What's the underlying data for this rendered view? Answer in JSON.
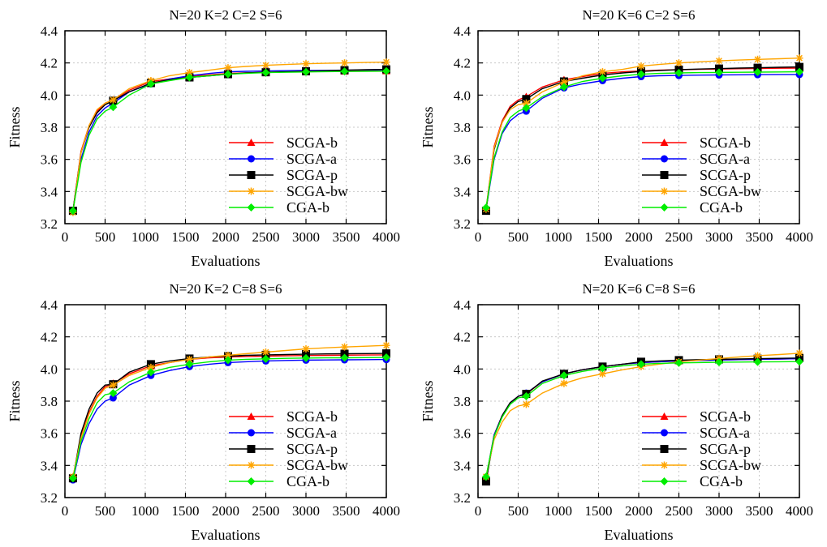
{
  "chart_data": [
    {
      "type": "line",
      "title": "N=20 K=2 C=2 S=6",
      "xlabel": "Evaluations",
      "ylabel": "Fitness",
      "xlim": [
        0,
        4000
      ],
      "ylim": [
        3.2,
        4.4
      ],
      "xticks": [
        0,
        500,
        1000,
        1500,
        2000,
        2500,
        3000,
        3500,
        4000
      ],
      "yticks": [
        "3.2",
        "3.4",
        "3.6",
        "3.8",
        "4.0",
        "4.2",
        "4.4"
      ],
      "grid": true,
      "legend_position": "bottom-right",
      "x": [
        100,
        200,
        300,
        400,
        500,
        600,
        800,
        1070,
        1300,
        1550,
        1800,
        2030,
        2250,
        2500,
        2750,
        3000,
        3250,
        3480,
        3750,
        4000
      ],
      "series": [
        {
          "name": "SCGA-b",
          "color": "#ff0000",
          "marker": "triangle",
          "values": [
            3.28,
            3.65,
            3.81,
            3.9,
            3.95,
            3.97,
            4.03,
            4.085,
            4.1,
            4.115,
            4.125,
            4.135,
            4.138,
            4.142,
            4.144,
            4.146,
            4.147,
            4.148,
            4.149,
            4.15
          ]
        },
        {
          "name": "SCGA-a",
          "color": "#0000ff",
          "marker": "circle",
          "values": [
            3.28,
            3.6,
            3.77,
            3.87,
            3.92,
            3.95,
            4.02,
            4.07,
            4.1,
            4.12,
            4.135,
            4.145,
            4.148,
            4.15,
            4.152,
            4.153,
            4.154,
            4.155,
            4.156,
            4.157
          ]
        },
        {
          "name": "SCGA-p",
          "color": "#000000",
          "marker": "square",
          "values": [
            3.28,
            3.64,
            3.8,
            3.89,
            3.94,
            3.965,
            4.02,
            4.075,
            4.095,
            4.11,
            4.12,
            4.13,
            4.138,
            4.142,
            4.145,
            4.148,
            4.152,
            4.155,
            4.158,
            4.16
          ]
        },
        {
          "name": "SCGA-bw",
          "color": "#ffa500",
          "marker": "star",
          "values": [
            3.27,
            3.64,
            3.81,
            3.91,
            3.95,
            3.97,
            4.04,
            4.09,
            4.12,
            4.14,
            4.155,
            4.17,
            4.178,
            4.185,
            4.19,
            4.195,
            4.198,
            4.2,
            4.203,
            4.205
          ]
        },
        {
          "name": "CGA-b",
          "color": "#00ee00",
          "marker": "diamond",
          "values": [
            3.28,
            3.58,
            3.75,
            3.85,
            3.9,
            3.925,
            4.0,
            4.07,
            4.09,
            4.11,
            4.12,
            4.13,
            4.135,
            4.14,
            4.142,
            4.144,
            4.146,
            4.147,
            4.148,
            4.149
          ]
        }
      ]
    },
    {
      "type": "line",
      "title": "N=20 K=6 C=2 S=6",
      "xlabel": "Evaluations",
      "ylabel": "Fitness",
      "xlim": [
        0,
        4000
      ],
      "ylim": [
        3.2,
        4.4
      ],
      "xticks": [
        0,
        500,
        1000,
        1500,
        2000,
        2500,
        3000,
        3500,
        4000
      ],
      "yticks": [
        "3.2",
        "3.4",
        "3.6",
        "3.8",
        "4.0",
        "4.2",
        "4.4"
      ],
      "grid": true,
      "legend_position": "bottom-right",
      "x": [
        100,
        200,
        300,
        400,
        500,
        600,
        800,
        1070,
        1300,
        1550,
        1800,
        2030,
        2250,
        2500,
        2750,
        3000,
        3250,
        3480,
        3750,
        4000
      ],
      "series": [
        {
          "name": "SCGA-b",
          "color": "#ff0000",
          "marker": "triangle",
          "values": [
            3.29,
            3.68,
            3.84,
            3.93,
            3.97,
            3.99,
            4.05,
            4.095,
            4.115,
            4.135,
            4.145,
            4.15,
            4.155,
            4.158,
            4.16,
            4.162,
            4.164,
            4.165,
            4.167,
            4.168
          ]
        },
        {
          "name": "SCGA-a",
          "color": "#0000ff",
          "marker": "circle",
          "values": [
            3.29,
            3.6,
            3.76,
            3.84,
            3.88,
            3.9,
            3.98,
            4.045,
            4.07,
            4.09,
            4.105,
            4.115,
            4.12,
            4.122,
            4.124,
            4.125,
            4.126,
            4.127,
            4.128,
            4.128
          ]
        },
        {
          "name": "SCGA-p",
          "color": "#000000",
          "marker": "square",
          "values": [
            3.28,
            3.66,
            3.83,
            3.92,
            3.96,
            3.975,
            4.04,
            4.085,
            4.105,
            4.125,
            4.138,
            4.147,
            4.153,
            4.158,
            4.162,
            4.165,
            4.168,
            4.17,
            4.173,
            4.175
          ]
        },
        {
          "name": "SCGA-bw",
          "color": "#ffa500",
          "marker": "star",
          "values": [
            3.29,
            3.67,
            3.83,
            3.91,
            3.94,
            3.95,
            4.02,
            4.08,
            4.12,
            4.145,
            4.16,
            4.18,
            4.19,
            4.2,
            4.207,
            4.213,
            4.218,
            4.222,
            4.226,
            4.23
          ]
        },
        {
          "name": "CGA-b",
          "color": "#00ee00",
          "marker": "diamond",
          "values": [
            3.3,
            3.61,
            3.77,
            3.86,
            3.9,
            3.92,
            3.99,
            4.05,
            4.085,
            4.105,
            4.12,
            4.13,
            4.135,
            4.138,
            4.14,
            4.141,
            4.142,
            4.143,
            4.144,
            4.145
          ]
        }
      ]
    },
    {
      "type": "line",
      "title": "N=20 K=2 C=8 S=6",
      "xlabel": "Evaluations",
      "ylabel": "Fitness",
      "xlim": [
        0,
        4000
      ],
      "ylim": [
        3.2,
        4.4
      ],
      "xticks": [
        0,
        500,
        1000,
        1500,
        2000,
        2500,
        3000,
        3500,
        4000
      ],
      "yticks": [
        "3.2",
        "3.4",
        "3.6",
        "3.8",
        "4.0",
        "4.2",
        "4.4"
      ],
      "grid": true,
      "legend_position": "bottom-right",
      "x": [
        100,
        200,
        300,
        400,
        500,
        600,
        800,
        1070,
        1300,
        1550,
        1800,
        2030,
        2250,
        2500,
        2750,
        3000,
        3250,
        3480,
        3750,
        4000
      ],
      "series": [
        {
          "name": "SCGA-b",
          "color": "#ff0000",
          "marker": "triangle",
          "values": [
            3.32,
            3.58,
            3.73,
            3.83,
            3.89,
            3.91,
            3.97,
            4.02,
            4.04,
            4.06,
            4.07,
            4.075,
            4.078,
            4.08,
            4.082,
            4.084,
            4.085,
            4.086,
            4.087,
            4.088
          ]
        },
        {
          "name": "SCGA-a",
          "color": "#0000ff",
          "marker": "circle",
          "values": [
            3.31,
            3.53,
            3.66,
            3.75,
            3.8,
            3.82,
            3.9,
            3.96,
            3.99,
            4.015,
            4.03,
            4.04,
            4.045,
            4.05,
            4.053,
            4.055,
            4.056,
            4.057,
            4.058,
            4.059
          ]
        },
        {
          "name": "SCGA-p",
          "color": "#000000",
          "marker": "square",
          "values": [
            3.32,
            3.6,
            3.75,
            3.85,
            3.9,
            3.905,
            3.98,
            4.03,
            4.05,
            4.065,
            4.075,
            4.08,
            4.085,
            4.088,
            4.09,
            4.092,
            4.094,
            4.095,
            4.096,
            4.097
          ]
        },
        {
          "name": "SCGA-bw",
          "color": "#ffa500",
          "marker": "star",
          "values": [
            3.33,
            3.57,
            3.72,
            3.82,
            3.88,
            3.9,
            3.96,
            4.01,
            4.04,
            4.06,
            4.075,
            4.085,
            4.095,
            4.105,
            4.115,
            4.125,
            4.132,
            4.137,
            4.142,
            4.147
          ]
        },
        {
          "name": "CGA-b",
          "color": "#00ee00",
          "marker": "diamond",
          "values": [
            3.32,
            3.55,
            3.69,
            3.79,
            3.84,
            3.85,
            3.92,
            3.98,
            4.01,
            4.03,
            4.045,
            4.055,
            4.06,
            4.063,
            4.066,
            4.068,
            4.069,
            4.07,
            4.071,
            4.072
          ]
        }
      ]
    },
    {
      "type": "line",
      "title": "N=20 K=6 C=8 S=6",
      "xlabel": "Evaluations",
      "ylabel": "Fitness",
      "xlim": [
        0,
        4000
      ],
      "ylim": [
        3.2,
        4.4
      ],
      "xticks": [
        0,
        500,
        1000,
        1500,
        2000,
        2500,
        3000,
        3500,
        4000
      ],
      "yticks": [
        "3.2",
        "3.4",
        "3.6",
        "3.8",
        "4.0",
        "4.2",
        "4.4"
      ],
      "grid": true,
      "legend_position": "bottom-right",
      "x": [
        100,
        200,
        300,
        400,
        500,
        600,
        800,
        1070,
        1300,
        1550,
        1800,
        2030,
        2250,
        2500,
        2750,
        3000,
        3250,
        3480,
        3750,
        4000
      ],
      "series": [
        {
          "name": "SCGA-b",
          "color": "#ff0000",
          "marker": "triangle",
          "values": [
            3.32,
            3.59,
            3.71,
            3.79,
            3.83,
            3.845,
            3.92,
            3.97,
            3.995,
            4.015,
            4.03,
            4.04,
            4.045,
            4.05,
            4.053,
            4.056,
            4.058,
            4.06,
            4.062,
            4.064
          ]
        },
        {
          "name": "SCGA-a",
          "color": "#0000ff",
          "marker": "circle",
          "values": [
            3.32,
            3.59,
            3.71,
            3.79,
            3.83,
            3.85,
            3.92,
            3.97,
            3.995,
            4.015,
            4.03,
            4.04,
            4.045,
            4.05,
            4.053,
            4.056,
            4.058,
            4.06,
            4.062,
            4.064
          ]
        },
        {
          "name": "SCGA-p",
          "color": "#000000",
          "marker": "square",
          "values": [
            3.3,
            3.58,
            3.71,
            3.79,
            3.83,
            3.845,
            3.925,
            3.97,
            3.995,
            4.015,
            4.03,
            4.045,
            4.05,
            4.055,
            4.058,
            4.06,
            4.062,
            4.064,
            4.066,
            4.068
          ]
        },
        {
          "name": "SCGA-bw",
          "color": "#ffa500",
          "marker": "star",
          "values": [
            3.33,
            3.56,
            3.67,
            3.74,
            3.77,
            3.78,
            3.85,
            3.91,
            3.945,
            3.97,
            3.995,
            4.015,
            4.03,
            4.045,
            4.055,
            4.065,
            4.075,
            4.083,
            4.09,
            4.098
          ]
        },
        {
          "name": "CGA-b",
          "color": "#00ee00",
          "marker": "diamond",
          "values": [
            3.33,
            3.58,
            3.7,
            3.78,
            3.82,
            3.83,
            3.91,
            3.96,
            3.985,
            4.005,
            4.02,
            4.03,
            4.035,
            4.038,
            4.04,
            4.042,
            4.043,
            4.044,
            4.045,
            4.046
          ]
        }
      ]
    }
  ]
}
